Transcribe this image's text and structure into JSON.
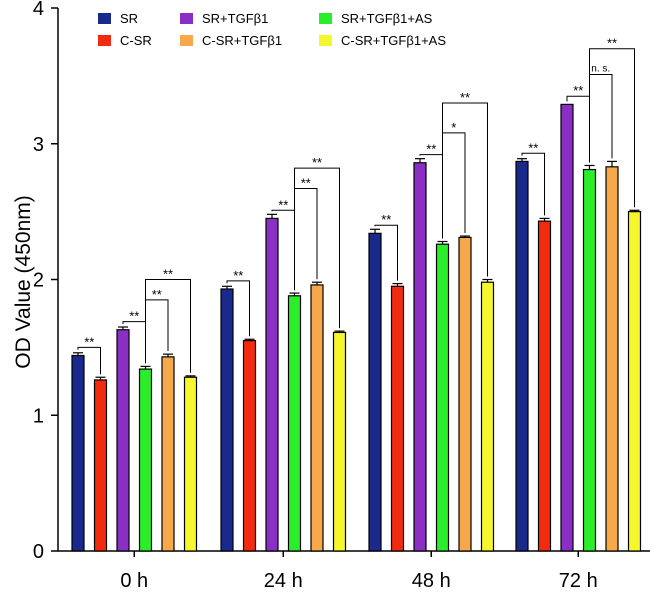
{
  "chart_data": {
    "type": "bar",
    "title": "",
    "xlabel": "",
    "ylabel": "OD Value (450nm)",
    "ylim": [
      0,
      4
    ],
    "yticks": [
      0,
      1,
      2,
      3,
      4
    ],
    "categories": [
      "0 h",
      "24 h",
      "48 h",
      "72 h"
    ],
    "series": [
      {
        "name": "SR",
        "color": "#1a2a8c",
        "values": [
          1.44,
          1.93,
          2.34,
          2.87
        ],
        "errors": [
          0.02,
          0.02,
          0.03,
          0.02
        ]
      },
      {
        "name": "C-SR",
        "color": "#f22a10",
        "values": [
          1.26,
          1.55,
          1.95,
          2.43
        ],
        "errors": [
          0.02,
          0.01,
          0.02,
          0.02
        ]
      },
      {
        "name": "SR+TGFβ1",
        "color": "#8a2fc4",
        "values": [
          1.63,
          2.45,
          2.86,
          3.29
        ],
        "errors": [
          0.02,
          0.03,
          0.03,
          0.0
        ]
      },
      {
        "name": "SR+TGFβ1+AS",
        "color": "#2aee2a",
        "values": [
          1.34,
          1.88,
          2.26,
          2.81
        ],
        "errors": [
          0.02,
          0.02,
          0.02,
          0.03
        ]
      },
      {
        "name": "C-SR+TGFβ1",
        "color": "#f7a84a",
        "values": [
          1.43,
          1.96,
          2.31,
          2.83
        ],
        "errors": [
          0.02,
          0.02,
          0.01,
          0.04
        ]
      },
      {
        "name": "C-SR+TGFβ1+AS",
        "color": "#f6f62e",
        "values": [
          1.28,
          1.61,
          1.98,
          2.5
        ],
        "errors": [
          0.01,
          0.01,
          0.02,
          0.01
        ]
      }
    ],
    "legend": {
      "placement": "top-left",
      "columns": 3
    },
    "significance": [
      {
        "category": 0,
        "from": 0,
        "to": 1,
        "label": "**",
        "y": 1.5
      },
      {
        "category": 0,
        "from": 2,
        "to": 3,
        "label": "**",
        "y": 1.69
      },
      {
        "category": 0,
        "from": 3,
        "to": 4,
        "label": "**",
        "y": 1.85
      },
      {
        "category": 0,
        "from": 3,
        "to": 5,
        "label": "**",
        "y": 2.0
      },
      {
        "category": 1,
        "from": 0,
        "to": 1,
        "label": "**",
        "y": 1.99
      },
      {
        "category": 1,
        "from": 2,
        "to": 3,
        "label": "**",
        "y": 2.51
      },
      {
        "category": 1,
        "from": 3,
        "to": 4,
        "label": "**",
        "y": 2.67
      },
      {
        "category": 1,
        "from": 3,
        "to": 5,
        "label": "**",
        "y": 2.82
      },
      {
        "category": 2,
        "from": 0,
        "to": 1,
        "label": "**",
        "y": 2.4
      },
      {
        "category": 2,
        "from": 2,
        "to": 3,
        "label": "**",
        "y": 2.92
      },
      {
        "category": 2,
        "from": 3,
        "to": 4,
        "label": "*",
        "y": 3.08
      },
      {
        "category": 2,
        "from": 3,
        "to": 5,
        "label": "**",
        "y": 3.3
      },
      {
        "category": 3,
        "from": 0,
        "to": 1,
        "label": "**",
        "y": 2.93
      },
      {
        "category": 3,
        "from": 2,
        "to": 3,
        "label": "**",
        "y": 3.35
      },
      {
        "category": 3,
        "from": 3,
        "to": 4,
        "label": "n. s.",
        "y": 3.51
      },
      {
        "category": 3,
        "from": 3,
        "to": 5,
        "label": "**",
        "y": 3.7
      }
    ]
  }
}
